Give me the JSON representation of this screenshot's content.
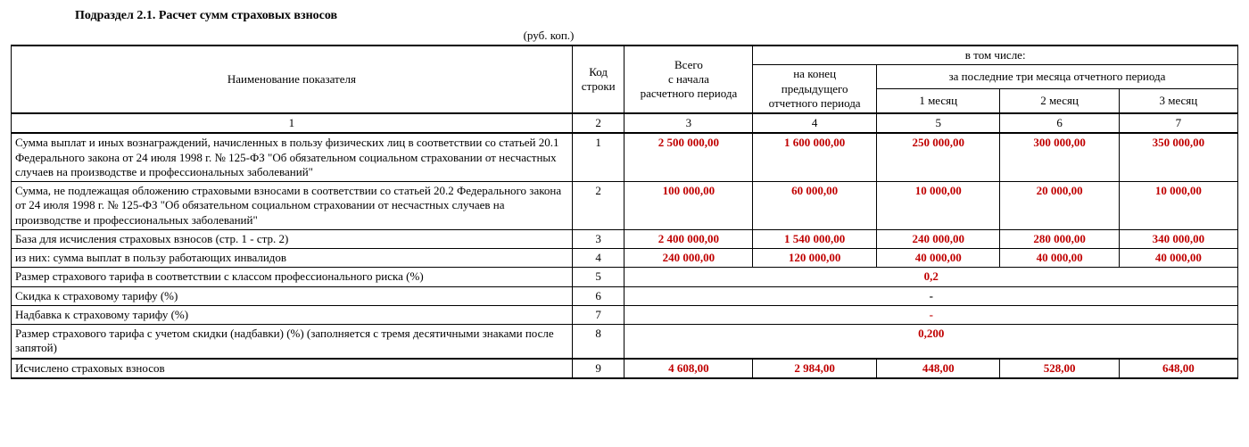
{
  "title": "Подраздел 2.1. Расчет сумм страховых взносов",
  "unit_label": "(руб. коп.)",
  "header": {
    "name": "Наименование показателя",
    "code": "Код строки",
    "total": "Всего\nс начала\nрасчетного периода",
    "including": "в том числе:",
    "end_prev": "на конец\nпредыдущего\nотчетного периода",
    "last3": "за последние три месяца отчетного периода",
    "m1": "1 месяц",
    "m2": "2 месяц",
    "m3": "3 месяц"
  },
  "colnums": {
    "c1": "1",
    "c2": "2",
    "c3": "3",
    "c4": "4",
    "c5": "5",
    "c6": "6",
    "c7": "7"
  },
  "rows": [
    {
      "name": "Сумма выплат и иных вознаграждений, начисленных в пользу физических лиц в соответствии со статьей 20.1 Федерального закона от 24 июля 1998 г. № 125-ФЗ \"Об обязательном социальном страховании от несчастных случаев на производстве и профессиональных заболеваний\"",
      "code": "1",
      "v": [
        "2 500 000,00",
        "1 600 000,00",
        "250 000,00",
        "300 000,00",
        "350 000,00"
      ],
      "red": true
    },
    {
      "name": "Сумма, не подлежащая обложению страховыми взносами в соответствии со статьей 20.2 Федерального закона от 24 июля 1998 г. № 125-ФЗ \"Об обязательном социальном страховании от несчастных случаев на производстве и профессиональных заболеваний\"",
      "code": "2",
      "v": [
        "100 000,00",
        "60 000,00",
        "10 000,00",
        "20 000,00",
        "10 000,00"
      ],
      "red": true
    },
    {
      "name": "База для исчисления страховых взносов (стр. 1 - стр. 2)",
      "code": "3",
      "v": [
        "2 400 000,00",
        "1 540 000,00",
        "240 000,00",
        "280 000,00",
        "340 000,00"
      ],
      "red": true
    },
    {
      "name": "из них: сумма выплат в пользу работающих инвалидов",
      "code": "4",
      "v": [
        "240 000,00",
        "120 000,00",
        "40 000,00",
        "40 000,00",
        "40 000,00"
      ],
      "red": true
    },
    {
      "name": "Размер страхового тарифа в соответствии с классом профессионального риска (%)",
      "code": "5",
      "span": "0,2",
      "red": true
    },
    {
      "name": "Скидка к страховому тарифу (%)",
      "code": "6",
      "span": "-",
      "red": false
    },
    {
      "name": "Надбавка к страховому тарифу (%)",
      "code": "7",
      "span": "-",
      "red": true
    },
    {
      "name": "Размер страхового тарифа с учетом скидки (надбавки) (%) (заполняется с тремя десятичными знаками после запятой)",
      "code": "8",
      "span": "0,200",
      "red": true
    },
    {
      "name": "Исчислено страховых взносов",
      "code": "9",
      "v": [
        "4 608,00",
        "2 984,00",
        "448,00",
        "528,00",
        "648,00"
      ],
      "red": true
    }
  ]
}
